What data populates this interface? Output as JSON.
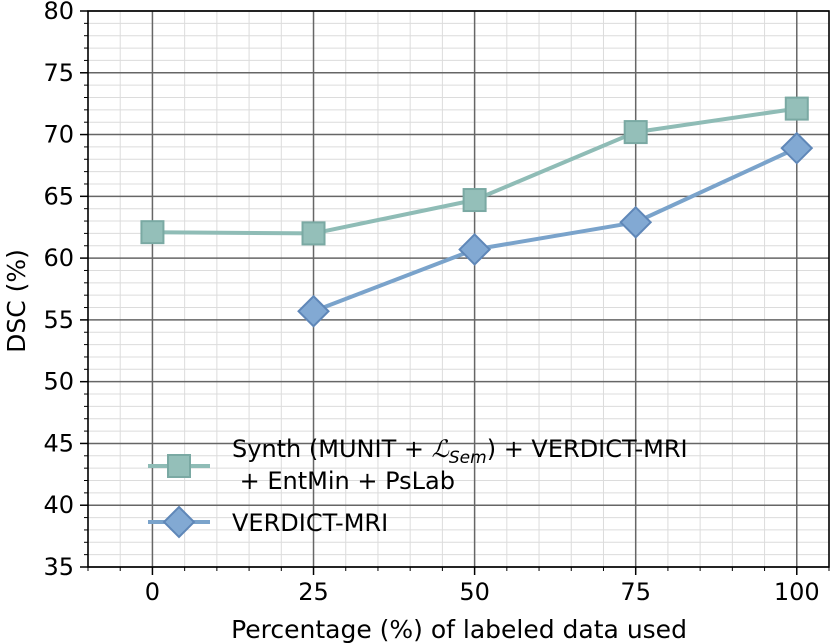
{
  "chart_data": {
    "type": "line",
    "xlabel": "Percentage (%) of labeled data used",
    "ylabel": "DSC (%)",
    "xlim": [
      -10,
      105
    ],
    "ylim": [
      35,
      80
    ],
    "xticks": [
      0,
      25,
      50,
      75,
      100
    ],
    "yticks": [
      35,
      40,
      45,
      50,
      55,
      60,
      65,
      70,
      75,
      80
    ],
    "grid": true,
    "minor_grid": true,
    "legend_position": "lower-right",
    "series": [
      {
        "name": "Synth (MUNIT + ℒSem)  + VERDICT-MRI",
        "name_line2": " + EntMin + PsLab",
        "name_prefix": "Synth (MUNIT + ",
        "name_script": "ℒ",
        "name_sub": "Sem",
        "name_suffix": ")  + VERDICT-MRI",
        "marker": "square",
        "color": "#8fbcb6",
        "marker_fill": "#94bfb9",
        "marker_edge": "#7aa9a3",
        "x": [
          0,
          25,
          50,
          75,
          100
        ],
        "y": [
          62.1,
          62.0,
          64.7,
          70.2,
          72.1
        ]
      },
      {
        "name": "VERDICT-MRI",
        "marker": "diamond",
        "color": "#7aa3cb",
        "marker_fill": "#82a9d3",
        "marker_edge": "#5f87b8",
        "x": [
          25,
          50,
          75,
          100
        ],
        "y": [
          55.7,
          60.7,
          62.9,
          68.9
        ]
      }
    ]
  }
}
